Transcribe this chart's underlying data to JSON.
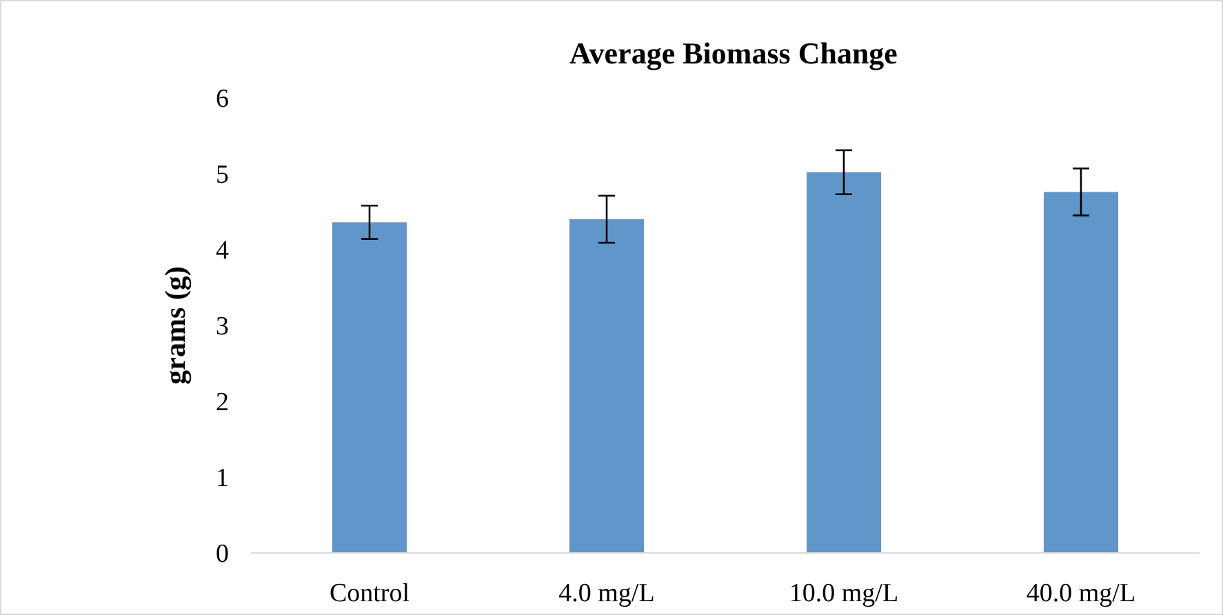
{
  "chart_data": {
    "type": "bar",
    "title": "Average Biomass Change",
    "ylabel": "grams (g)",
    "categories": [
      "Control",
      "4.0 mg/L",
      "10.0 mg/L",
      "40.0 mg/L"
    ],
    "values": [
      4.36,
      4.4,
      5.02,
      4.76
    ],
    "errors": [
      0.22,
      0.31,
      0.29,
      0.31
    ],
    "color": "#6096c9",
    "ylim": [
      0,
      6
    ],
    "yticks": [
      0,
      1,
      2,
      3,
      4,
      5,
      6
    ],
    "grid": false
  }
}
